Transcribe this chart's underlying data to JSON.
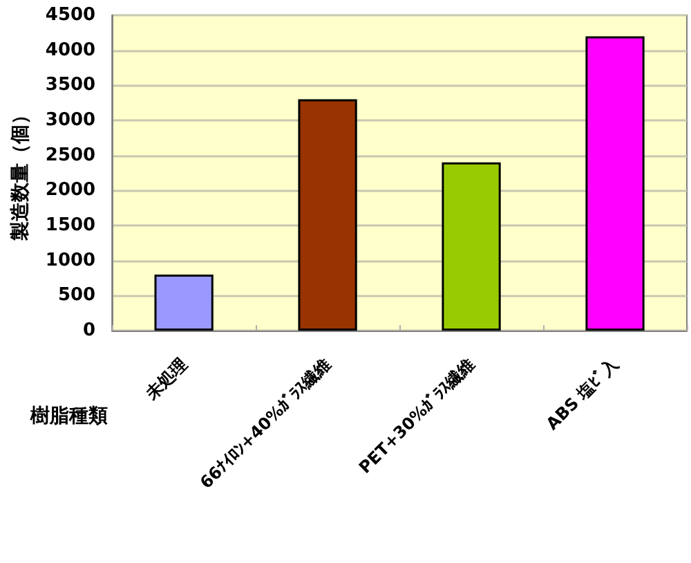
{
  "chart_data": {
    "type": "bar",
    "xlabel": "樹脂種類",
    "ylabel": "製造数量（個）",
    "categories": [
      "未処理",
      "66ﾅｲﾛﾝ+40%ｶﾞﾗｽ繊維",
      "PET+30%ｶﾞﾗｽ繊維",
      "ABS 塩ﾋﾞ入"
    ],
    "values": [
      800,
      3300,
      2400,
      4200
    ],
    "colors": [
      "#9999ff",
      "#993300",
      "#99cc00",
      "#ff00ff"
    ],
    "ylim": [
      0,
      4500
    ],
    "yticks": [
      0,
      500,
      1000,
      1500,
      2000,
      2500,
      3000,
      3500,
      4000,
      4500
    ],
    "grid": "y"
  }
}
